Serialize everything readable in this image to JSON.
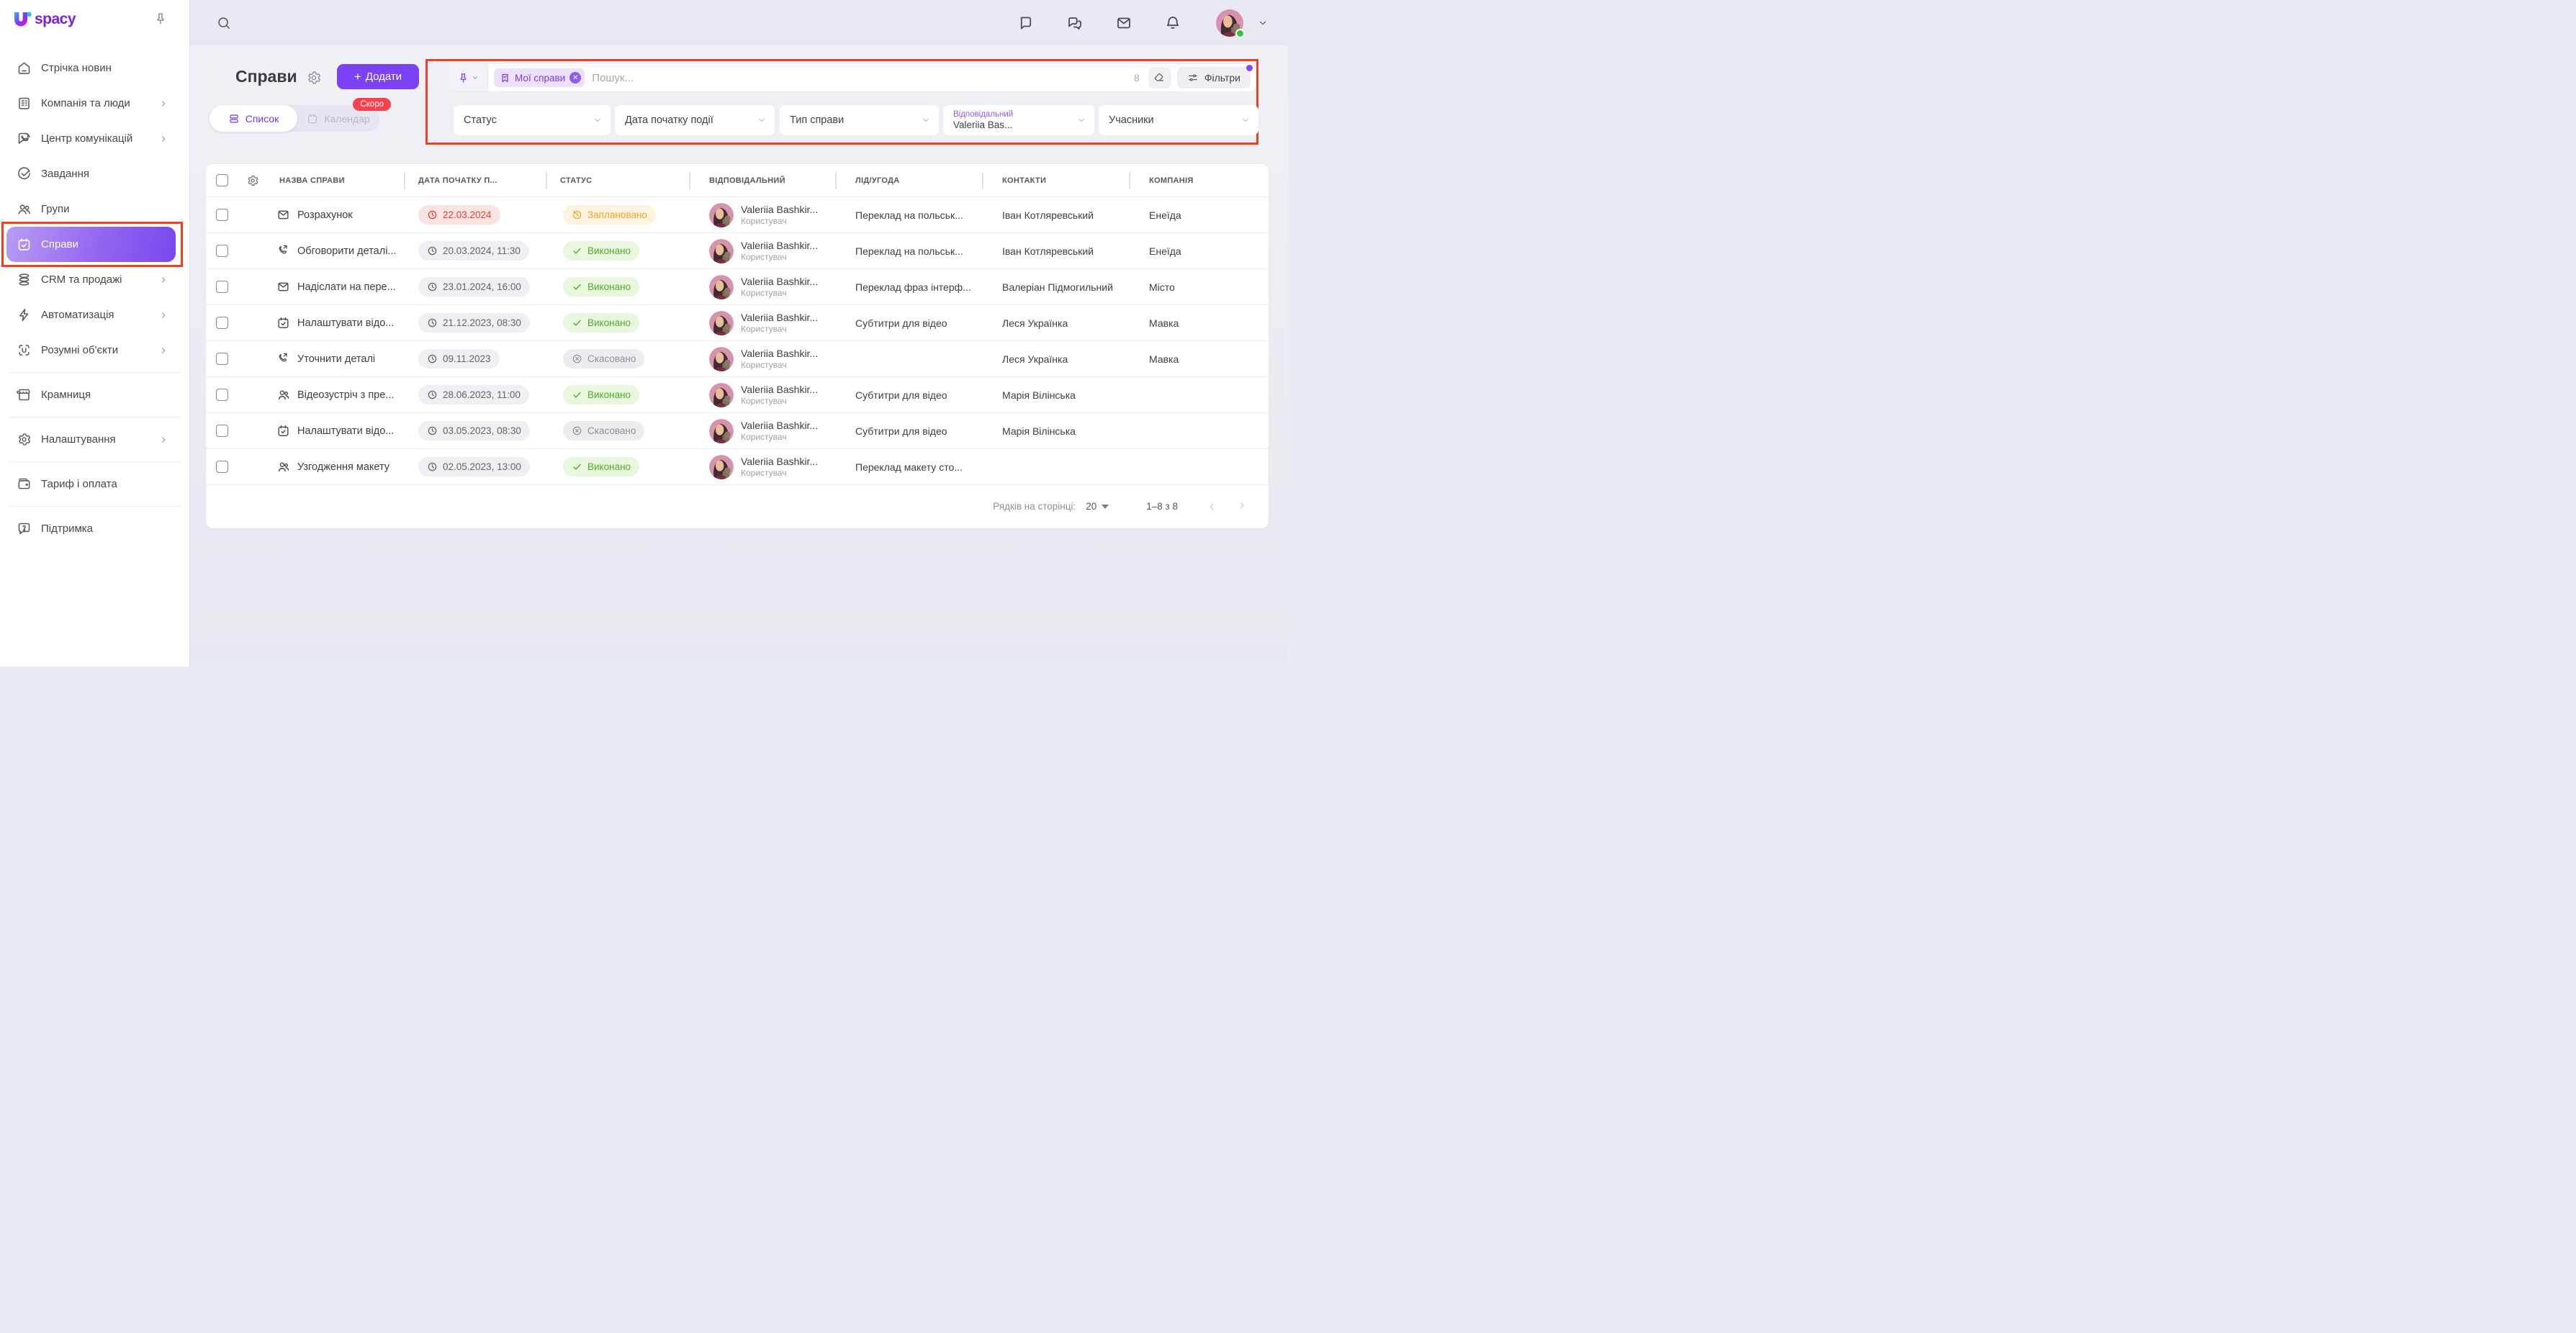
{
  "brand": {
    "logo_text": "spacy",
    "logo_accent_colors": [
      "#2bb7f0",
      "#8b2ff1",
      "#e01ec0",
      "#22c3e6"
    ]
  },
  "sidebar": {
    "items": [
      {
        "label": "Стрічка новин",
        "icon": "home-icon"
      },
      {
        "label": "Компанія та люди",
        "icon": "company-icon",
        "chevron": true
      },
      {
        "label": "Центр комунікацій",
        "icon": "communications-icon",
        "chevron": true
      },
      {
        "label": "Завдання",
        "icon": "tasks-icon"
      },
      {
        "label": "Групи",
        "icon": "groups-icon"
      },
      {
        "label": "Справи",
        "icon": "activities-icon",
        "active": true,
        "highlight_outline": true
      },
      {
        "label": "CRM та продажі",
        "icon": "crm-icon",
        "chevron": true
      },
      {
        "label": "Автоматизація",
        "icon": "automation-icon",
        "chevron": true
      },
      {
        "label": "Розумні об'єкти",
        "icon": "smart-objects-icon",
        "chevron": true,
        "divider_after": true
      },
      {
        "label": "Крамниця",
        "icon": "store-icon",
        "divider_after": true
      },
      {
        "label": "Налаштування",
        "icon": "settings-icon",
        "chevron": true,
        "divider_after": true
      },
      {
        "label": "Тариф і оплата",
        "icon": "billing-icon",
        "divider_after": true
      },
      {
        "label": "Підтримка",
        "icon": "support-icon"
      }
    ]
  },
  "topbar": {
    "icons": [
      {
        "name": "chat-icon"
      },
      {
        "name": "group-chat-icon"
      },
      {
        "name": "mail-icon"
      },
      {
        "name": "notifications-icon"
      }
    ],
    "user_status": "online"
  },
  "page": {
    "title": "Справи",
    "add_button_label": "Додати",
    "tabs": [
      {
        "label": "Список",
        "icon": "list-view-icon",
        "active": true
      },
      {
        "label": "Календар",
        "icon": "calendar-view-icon",
        "active": false,
        "badge": "Скоро"
      }
    ]
  },
  "filters": {
    "saved_filter_chip": "Мої справи",
    "search_placeholder": "Пошук...",
    "results_count": "8",
    "filters_button_label": "Фільтри",
    "has_active_filter_dot": true,
    "dropdowns": [
      {
        "label": "Статус"
      },
      {
        "label": "Дата початку події"
      },
      {
        "label": "Тип справи"
      },
      {
        "label": "Відповідальний",
        "value": "Valeriia Bas..."
      },
      {
        "label": "Учасники"
      }
    ]
  },
  "table": {
    "columns": [
      "НАЗВА СПРАВИ",
      "ДАТА ПОЧАТКУ П...",
      "СТАТУС",
      "ВІДПОВІДАЛЬНИЙ",
      "ЛІД/УГОДА",
      "КОНТАКТИ",
      "КОМПАНІЯ"
    ],
    "status_colors": {
      "done": "#4fae27",
      "planned": "#f0a42e",
      "cancelled": "#8e8f99",
      "overdue": "#e0442c"
    },
    "rows": [
      {
        "type_icon": "email-activity-icon",
        "name": "Розрахунок",
        "date": "22.03.2024",
        "date_overdue": true,
        "status": "Заплановано",
        "status_kind": "planned",
        "responsible": "Valeriia Bashkir...",
        "responsible_role": "Користувач",
        "lead": "Переклад на польськ...",
        "contact": "Іван Котляревський",
        "company": "Енеїда"
      },
      {
        "type_icon": "call-activity-icon",
        "name": "Обговорити деталі...",
        "date": "20.03.2024, 11:30",
        "date_overdue": false,
        "status": "Виконано",
        "status_kind": "done",
        "responsible": "Valeriia Bashkir...",
        "responsible_role": "Користувач",
        "lead": "Переклад на польськ...",
        "contact": "Іван Котляревський",
        "company": "Енеїда"
      },
      {
        "type_icon": "email-activity-icon",
        "name": "Надіслати на пере...",
        "date": "23.01.2024, 16:00",
        "date_overdue": false,
        "status": "Виконано",
        "status_kind": "done",
        "responsible": "Valeriia Bashkir...",
        "responsible_role": "Користувач",
        "lead": "Переклад фраз інтерф...",
        "contact": "Валеріан Підмогильний",
        "company": "Місто"
      },
      {
        "type_icon": "calendar-activity-icon",
        "name": "Налаштувати відо...",
        "date": "21.12.2023, 08:30",
        "date_overdue": false,
        "status": "Виконано",
        "status_kind": "done",
        "responsible": "Valeriia Bashkir...",
        "responsible_role": "Користувач",
        "lead": "Субтитри для відео",
        "contact": "Леся Українка",
        "company": "Мавка"
      },
      {
        "type_icon": "call-activity-icon",
        "name": "Уточнити деталі",
        "date": "09.11.2023",
        "date_overdue": false,
        "status": "Скасовано",
        "status_kind": "cancelled",
        "responsible": "Valeriia Bashkir...",
        "responsible_role": "Користувач",
        "lead": "",
        "contact": "Леся Українка",
        "company": "Мавка"
      },
      {
        "type_icon": "meeting-activity-icon",
        "name": "Відеозустріч з пре...",
        "date": "28.06.2023, 11:00",
        "date_overdue": false,
        "status": "Виконано",
        "status_kind": "done",
        "responsible": "Valeriia Bashkir...",
        "responsible_role": "Користувач",
        "lead": "Субтитри для відео",
        "contact": "Марія Вілінська",
        "company": ""
      },
      {
        "type_icon": "calendar-activity-icon",
        "name": "Налаштувати відо...",
        "date": "03.05.2023, 08:30",
        "date_overdue": false,
        "status": "Скасовано",
        "status_kind": "cancelled",
        "responsible": "Valeriia Bashkir...",
        "responsible_role": "Користувач",
        "lead": "Субтитри для відео",
        "contact": "Марія Вілінська",
        "company": ""
      },
      {
        "type_icon": "meeting-activity-icon",
        "name": "Узгодження макету",
        "date": "02.05.2023, 13:00",
        "date_overdue": false,
        "status": "Виконано",
        "status_kind": "done",
        "responsible": "Valeriia Bashkir...",
        "responsible_role": "Користувач",
        "lead": "Переклад макету сто...",
        "contact": "",
        "company": ""
      }
    ]
  },
  "pagination": {
    "rows_per_page_label": "Рядків на сторінці:",
    "rows_per_page": "20",
    "range_label": "1–8 з 8"
  }
}
